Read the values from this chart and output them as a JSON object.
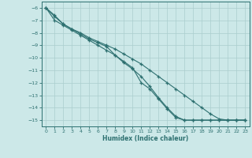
{
  "xlabel": "Humidex (Indice chaleur)",
  "ylabel": "",
  "bg_color": "#cce8e8",
  "line_color": "#2d7070",
  "grid_color": "#aacece",
  "xlim": [
    -0.5,
    23.5
  ],
  "ylim": [
    -15.5,
    -5.5
  ],
  "xticks": [
    0,
    1,
    2,
    3,
    4,
    5,
    6,
    7,
    8,
    9,
    10,
    11,
    12,
    13,
    14,
    15,
    16,
    17,
    18,
    19,
    20,
    21,
    22,
    23
  ],
  "yticks": [
    -6,
    -7,
    -8,
    -9,
    -10,
    -11,
    -12,
    -13,
    -14,
    -15
  ],
  "curve1_x": [
    0,
    1,
    2,
    3,
    4,
    5,
    6,
    7,
    8,
    9,
    10,
    11,
    12,
    13,
    14,
    15,
    16,
    17,
    18,
    19,
    20,
    21,
    22,
    23
  ],
  "curve1_y": [
    -6.0,
    -6.6,
    -7.3,
    -7.7,
    -8.0,
    -8.4,
    -8.7,
    -9.0,
    -9.3,
    -9.7,
    -10.1,
    -10.5,
    -11.0,
    -11.5,
    -12.0,
    -12.5,
    -13.0,
    -13.5,
    -14.0,
    -14.5,
    -14.9,
    -15.0,
    -15.0,
    -15.0
  ],
  "curve2_x": [
    0,
    1,
    2,
    3,
    4,
    5,
    6,
    7,
    8,
    9,
    10,
    11,
    12,
    13,
    14,
    15,
    16,
    17,
    18,
    19,
    20,
    21,
    22,
    23
  ],
  "curve2_y": [
    -6.0,
    -6.7,
    -7.3,
    -7.7,
    -8.1,
    -8.5,
    -8.8,
    -9.1,
    -9.8,
    -10.4,
    -10.9,
    -11.5,
    -12.3,
    -13.2,
    -14.0,
    -14.7,
    -15.0,
    -15.0,
    -15.0,
    -15.0,
    -15.0,
    -15.0,
    -15.0,
    -15.0
  ],
  "curve3_x": [
    0,
    1,
    2,
    3,
    4,
    5,
    6,
    7,
    8,
    9,
    10,
    11,
    12,
    13,
    14,
    15,
    16,
    17,
    18,
    19,
    20,
    21,
    22,
    23
  ],
  "curve3_y": [
    -6.0,
    -7.0,
    -7.4,
    -7.8,
    -8.2,
    -8.6,
    -9.0,
    -9.4,
    -9.8,
    -10.3,
    -10.8,
    -12.0,
    -12.5,
    -13.3,
    -14.1,
    -14.8,
    -15.0,
    -15.0,
    -15.0,
    -15.0,
    -15.0,
    -15.0,
    -15.0,
    -15.0
  ]
}
